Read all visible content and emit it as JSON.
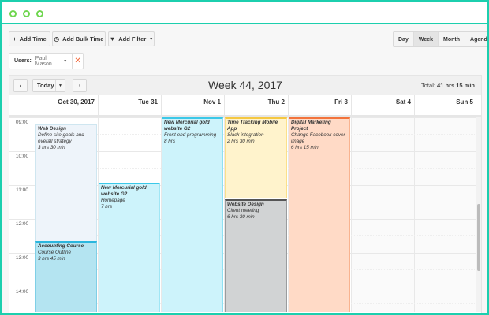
{
  "toolbar": {
    "add_time": "Add Time",
    "add_bulk_time": "Add Bulk Time",
    "add_filter": "Add Filter"
  },
  "views": [
    {
      "label": "Day",
      "active": false
    },
    {
      "label": "Week",
      "active": true
    },
    {
      "label": "Month",
      "active": false
    },
    {
      "label": "Agenda",
      "active": false
    }
  ],
  "filter": {
    "label": "Users:",
    "value": "Paul Mason"
  },
  "nav": {
    "today": "Today",
    "title": "Week 44, 2017",
    "total_label": "Total:",
    "total_value": "41 hrs 15 min"
  },
  "days": [
    "Oct 30, 2017",
    "Tue 31",
    "Nov 1",
    "Thu 2",
    "Fri 3",
    "Sat 4",
    "Sun 5"
  ],
  "hours": [
    "09:00",
    "10:00",
    "11:00",
    "12:00",
    "13:00",
    "14:00"
  ],
  "colors": {
    "accent": "#1ccfae",
    "light_blue": "#eef4fa",
    "cyan": "#cdf3fb",
    "yellow": "#fff3cc",
    "grey": "#d1d3d4",
    "orange": "#ffdac6",
    "blue": "#b4e4f1"
  },
  "events": [
    {
      "title": "Web Design",
      "task": "Define site goals and overall strategy",
      "duration": "3 hrs 30 min"
    },
    {
      "title": "Accounting Course",
      "task": "Course Outline",
      "duration": "3 hrs 45 min"
    },
    {
      "title": "New Mercurial gold website G2",
      "task": "Homepage",
      "duration": "7 hrs"
    },
    {
      "title": "New Mercurial gold website G2",
      "task": "Front-end programming",
      "duration": "8 hrs"
    },
    {
      "title": "Time Tracking Mobile App",
      "task": "Slack integration",
      "duration": "2 hrs 30 min"
    },
    {
      "title": "Website Design",
      "task": "Client meeting",
      "duration": "6 hrs 30 min"
    },
    {
      "title": "Digital Marketing Project",
      "task": "Change Facebook cover image",
      "duration": "6 hrs 15 min"
    }
  ]
}
